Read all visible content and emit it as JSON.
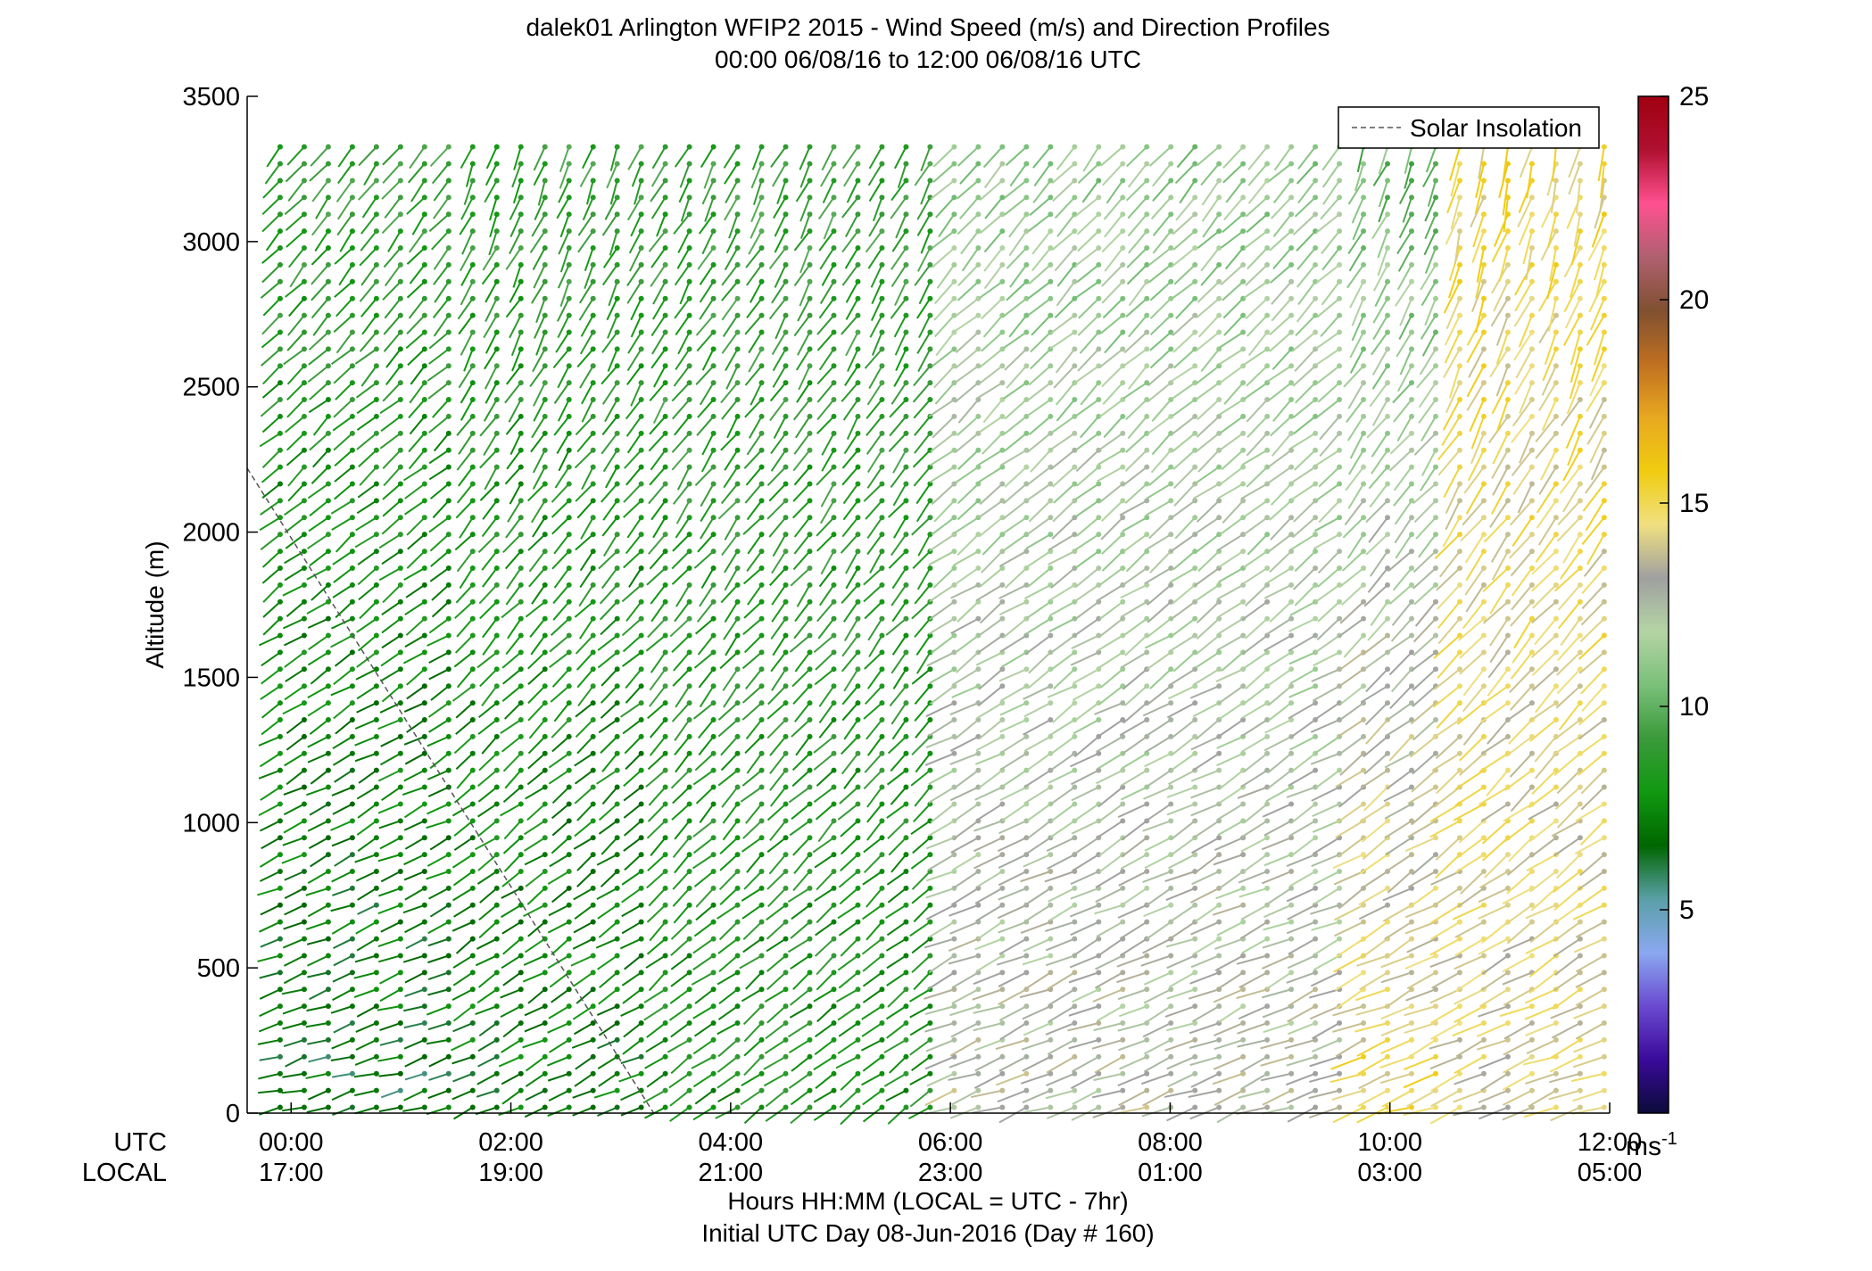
{
  "chart_data": {
    "type": "wind-barb-profile",
    "title": "dalek01 Arlington WFIP2 2015 - Wind Speed (m/s) and Direction Profiles",
    "subtitle": "00:00 06/08/16 to 12:00 06/08/16  UTC",
    "ylabel": "Altitude (m)",
    "ylim": [
      0,
      3500
    ],
    "yticks": [
      "0",
      "500",
      "1000",
      "1500",
      "2000",
      "2500",
      "3000",
      "3500"
    ],
    "xlim_hours": [
      -0.4,
      12.0
    ],
    "utc_row_label": "UTC",
    "local_row_label": "LOCAL",
    "xticks": [
      {
        "utc": "00:00",
        "local": "17:00"
      },
      {
        "utc": "02:00",
        "local": "19:00"
      },
      {
        "utc": "04:00",
        "local": "21:00"
      },
      {
        "utc": "06:00",
        "local": "23:00"
      },
      {
        "utc": "08:00",
        "local": "01:00"
      },
      {
        "utc": "10:00",
        "local": "03:00"
      },
      {
        "utc": "12:00",
        "local": "05:00"
      }
    ],
    "xlabel": "Hours HH:MM  (LOCAL = UTC - 7hr)",
    "xlabel2": "Initial UTC Day 08-Jun-2016 (Day # 160)",
    "legend": {
      "position": "top-right",
      "entries": [
        "Solar Insolation"
      ]
    },
    "colorbar": {
      "ticks": [
        "5",
        "10",
        "15",
        "20",
        "25"
      ],
      "unit_base": "ms",
      "unit_exp": "-1",
      "range": [
        0,
        25
      ]
    },
    "colormap": [
      "#0b0b3a",
      "#3a0a9a",
      "#6a4ad0",
      "#8aa8f0",
      "#5aa0a8",
      "#006600",
      "#119911",
      "#3a9a3a",
      "#7ac07a",
      "#b4d4a4",
      "#a0a0a0",
      "#f0e080",
      "#f0cc10",
      "#e8a820",
      "#c07020",
      "#805030",
      "#b06070",
      "#ff5090",
      "#b01030",
      "#a00010"
    ],
    "solar_insolation_line": [
      {
        "h": -0.4,
        "alt": 2220
      },
      {
        "h": 3.3,
        "alt": 0
      }
    ],
    "time_regions": [
      {
        "from_h": -0.4,
        "to_h": 1.6,
        "speed_low": 6.5,
        "speed_high": 9,
        "dir_low": 255,
        "dir_high": 215
      },
      {
        "from_h": 1.6,
        "to_h": 3.4,
        "speed_low": 7,
        "speed_high": 9,
        "dir_low": 245,
        "dir_high": 200
      },
      {
        "from_h": 3.4,
        "to_h": 6.0,
        "speed_low": 8,
        "speed_high": 9,
        "dir_low": 235,
        "dir_high": 205
      },
      {
        "from_h": 6.0,
        "to_h": 9.6,
        "speed_low": 13,
        "speed_high": 11,
        "dir_low": 250,
        "dir_high": 220
      },
      {
        "from_h": 9.6,
        "to_h": 10.6,
        "speed_low": 15,
        "speed_high": 10,
        "dir_low": 250,
        "dir_high": 200
      },
      {
        "from_h": 10.6,
        "to_h": 12.0,
        "speed_low": 14,
        "speed_high": 15,
        "dir_low": 250,
        "dir_high": 190
      }
    ]
  }
}
